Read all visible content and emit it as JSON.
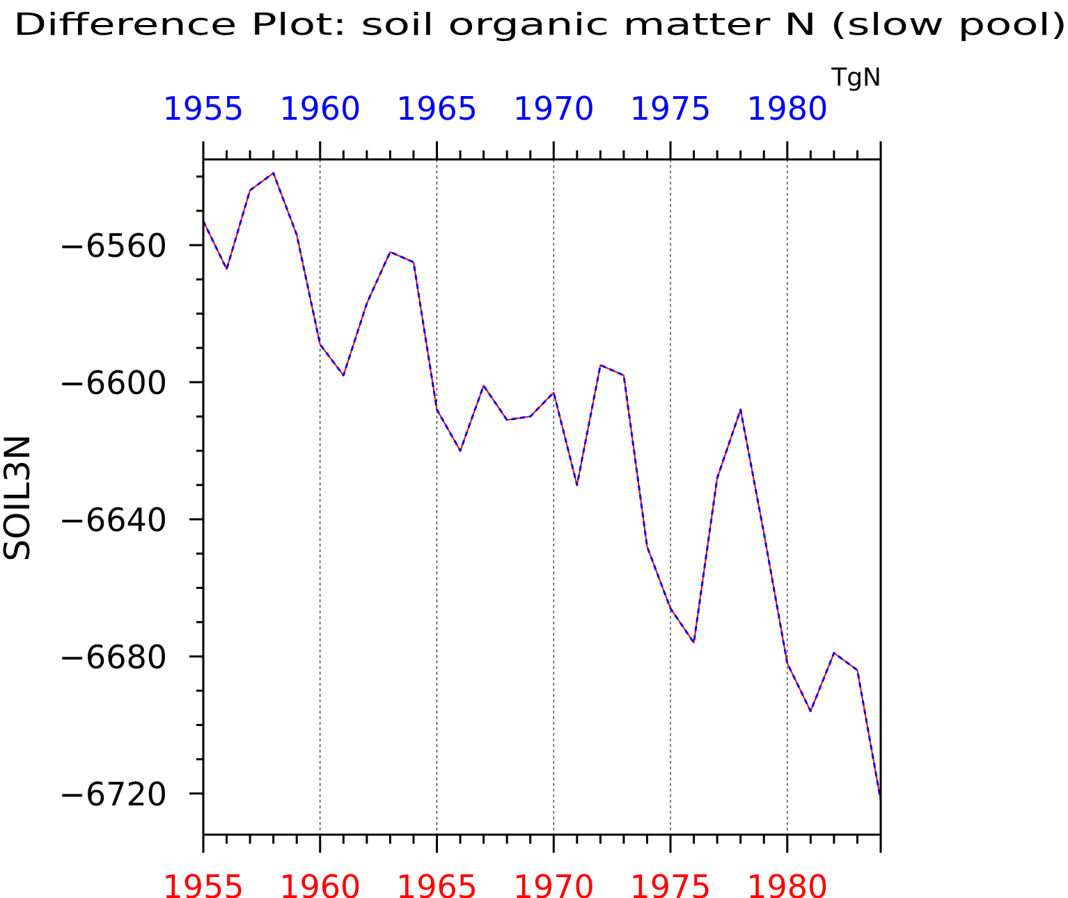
{
  "chart_data": {
    "type": "line",
    "title": "Difference Plot: soil organic matter N (slow pool)",
    "units": "TgN",
    "ylabel": "SOIL3N",
    "xlim": [
      1955,
      1984
    ],
    "ylim": [
      -6732,
      -6535
    ],
    "x_ticks": [
      1955,
      1960,
      1965,
      1970,
      1975,
      1980
    ],
    "y_ticks": [
      -6560,
      -6600,
      -6640,
      -6680,
      -6720
    ],
    "y_tick_labels": [
      "−6560",
      "−6600",
      "−6640",
      "−6680",
      "−6720"
    ],
    "grid_x": true,
    "grid_y": false,
    "x": [
      1955,
      1956,
      1957,
      1958,
      1959,
      1960,
      1961,
      1962,
      1963,
      1964,
      1965,
      1966,
      1967,
      1968,
      1969,
      1970,
      1971,
      1972,
      1973,
      1974,
      1975,
      1976,
      1977,
      1978,
      1979,
      1980,
      1981,
      1982,
      1983,
      1984
    ],
    "series": [
      {
        "color": "#ff0000",
        "dash": "solid",
        "values": [
          -6553,
          -6567,
          -6544,
          -6539,
          -6557,
          -6589,
          -6598,
          -6577,
          -6562,
          -6565,
          -6608,
          -6620,
          -6601,
          -6611,
          -6610,
          -6603,
          -6630,
          -6595,
          -6598,
          -6648,
          -6666,
          -6676,
          -6628,
          -6608,
          -6644,
          -6682,
          -6696,
          -6679,
          -6684,
          -6722
        ]
      },
      {
        "color": "#0000ff",
        "dash": "dashed",
        "values": [
          -6553,
          -6567,
          -6544,
          -6539,
          -6557,
          -6589,
          -6598,
          -6577,
          -6562,
          -6565,
          -6608,
          -6620,
          -6601,
          -6611,
          -6610,
          -6603,
          -6630,
          -6595,
          -6598,
          -6648,
          -6666,
          -6676,
          -6628,
          -6608,
          -6644,
          -6682,
          -6696,
          -6679,
          -6684,
          -6722
        ]
      }
    ],
    "colors": {
      "bottom_axis_labels": "#ff0000",
      "top_axis_labels": "#0000ff",
      "frame": "#000000"
    }
  }
}
